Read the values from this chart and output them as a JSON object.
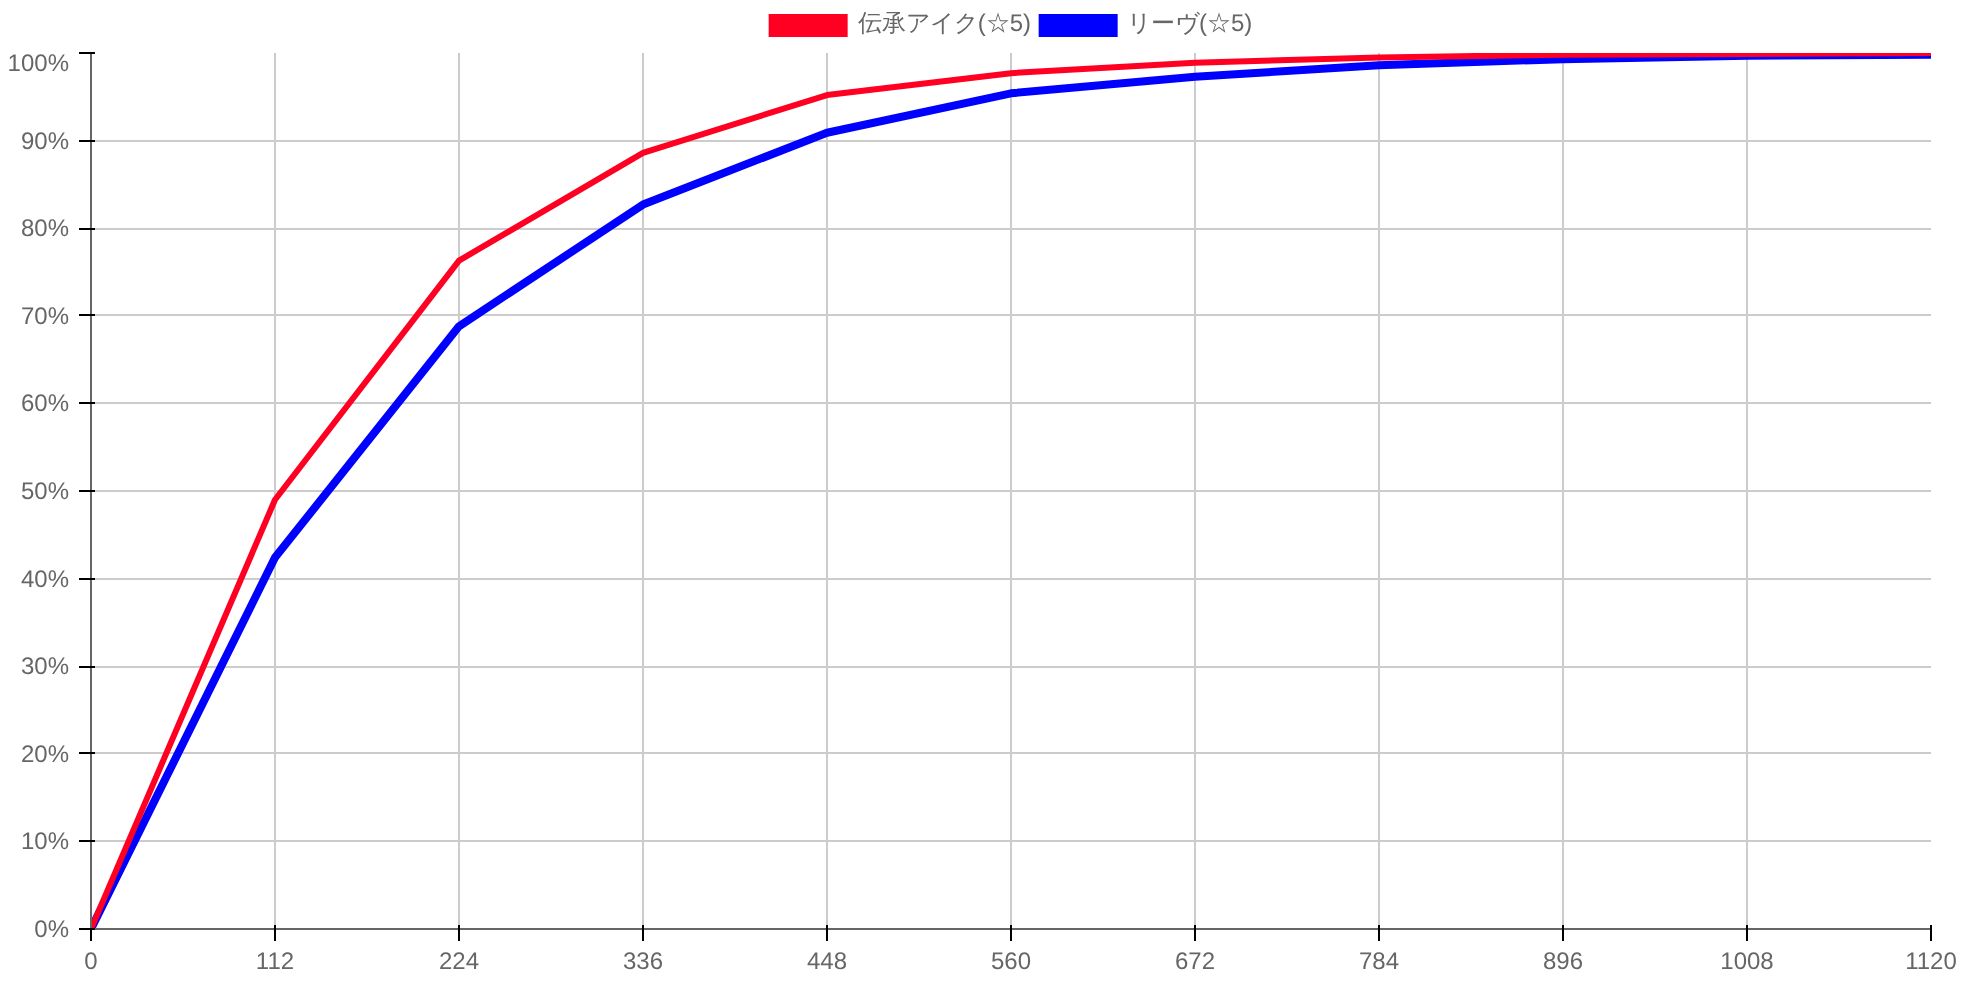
{
  "chart_data": {
    "type": "line",
    "x": [
      0,
      112,
      224,
      336,
      448,
      560,
      672,
      784,
      896,
      1008,
      1120
    ],
    "series": [
      {
        "name": "伝承アイク(☆5)",
        "color": "#ff0022",
        "values": [
          0,
          49.0,
          76.3,
          88.6,
          95.2,
          97.7,
          98.9,
          99.5,
          99.8,
          99.9,
          100
        ]
      },
      {
        "name": "リーヴ(☆5)",
        "color": "#0000ff",
        "values": [
          0,
          42.4,
          68.8,
          82.7,
          90.9,
          95.4,
          97.3,
          98.6,
          99.3,
          99.7,
          99.8
        ]
      }
    ],
    "xlim": [
      0,
      1120
    ],
    "xticks": [
      0,
      112,
      224,
      336,
      448,
      560,
      672,
      784,
      896,
      1008,
      1120
    ],
    "ylim": [
      0,
      100
    ],
    "yticks": [
      {
        "value": 0,
        "label": "0%"
      },
      {
        "value": 10,
        "label": "10%"
      },
      {
        "value": 20,
        "label": "20%"
      },
      {
        "value": 30,
        "label": "30%"
      },
      {
        "value": 40,
        "label": "40%"
      },
      {
        "value": 50,
        "label": "50%"
      },
      {
        "value": 60,
        "label": "60%"
      },
      {
        "value": 70,
        "label": "70%"
      },
      {
        "value": 80,
        "label": "80%"
      },
      {
        "value": 90,
        "label": "90%"
      },
      {
        "value": 100,
        "label": "100%"
      }
    ],
    "grid": true,
    "legend": "top",
    "marker": "none",
    "line_style": "solid"
  }
}
